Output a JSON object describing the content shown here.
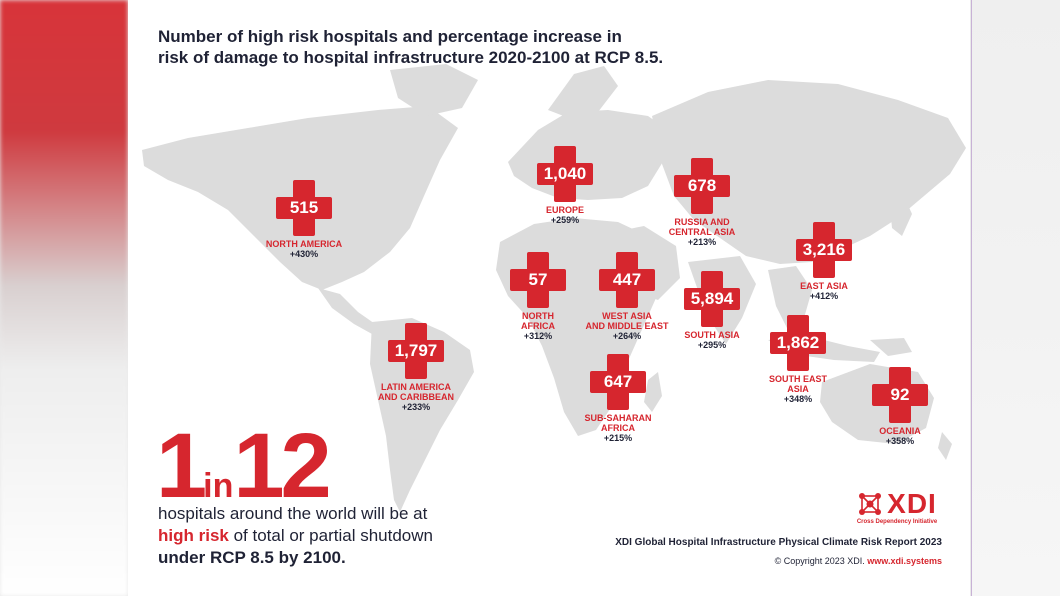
{
  "title_lines": [
    "Number of high risk hospitals and percentage increase in",
    "risk of damage to hospital infrastructure 2020-2100 at RCP 8.5."
  ],
  "regions": [
    {
      "id": "north-america",
      "value": "515",
      "name": [
        "NORTH AMERICA"
      ],
      "increase": "+430%"
    },
    {
      "id": "latin-america",
      "value": "1,797",
      "name": [
        "LATIN AMERICA",
        "AND CARIBBEAN"
      ],
      "increase": "+233%"
    },
    {
      "id": "europe",
      "value": "1,040",
      "name": [
        "EUROPE"
      ],
      "increase": "+259%"
    },
    {
      "id": "russia",
      "value": "678",
      "name": [
        "RUSSIA AND",
        "CENTRAL ASIA"
      ],
      "increase": "+213%"
    },
    {
      "id": "north-africa",
      "value": "57",
      "name": [
        "NORTH",
        "AFRICA"
      ],
      "increase": "+312%"
    },
    {
      "id": "west-asia",
      "value": "447",
      "name": [
        "WEST ASIA",
        "AND MIDDLE EAST"
      ],
      "increase": "+264%"
    },
    {
      "id": "south-asia",
      "value": "5,894",
      "name": [
        "SOUTH ASIA"
      ],
      "increase": "+295%"
    },
    {
      "id": "east-asia",
      "value": "3,216",
      "name": [
        "EAST ASIA"
      ],
      "increase": "+412%"
    },
    {
      "id": "south-east-asia",
      "value": "1,862",
      "name": [
        "SOUTH EAST",
        "ASIA"
      ],
      "increase": "+348%"
    },
    {
      "id": "sub-saharan",
      "value": "647",
      "name": [
        "SUB-SAHARAN",
        "AFRICA"
      ],
      "increase": "+215%"
    },
    {
      "id": "oceania",
      "value": "92",
      "name": [
        "OCEANIA"
      ],
      "increase": "+358%"
    }
  ],
  "headline": {
    "num1": "1",
    "word": "in",
    "num2": "12"
  },
  "statement": {
    "line1": "hospitals around the world will be at",
    "highlight": "high risk",
    "line2_rest": " of total or partial shutdown",
    "line3": "under RCP 8.5 by 2100."
  },
  "logo": {
    "word": "XDI",
    "tagline": "Cross Dependency Initiative"
  },
  "report_title": "XDI Global Hospital Infrastructure Physical Climate Risk Report 2023",
  "copyright": "© Copyright 2023 XDI.",
  "url": "www.xdi.systems",
  "colors": {
    "accent": "#d6262e",
    "text": "#1f2235",
    "land": "#dcdcdc"
  }
}
